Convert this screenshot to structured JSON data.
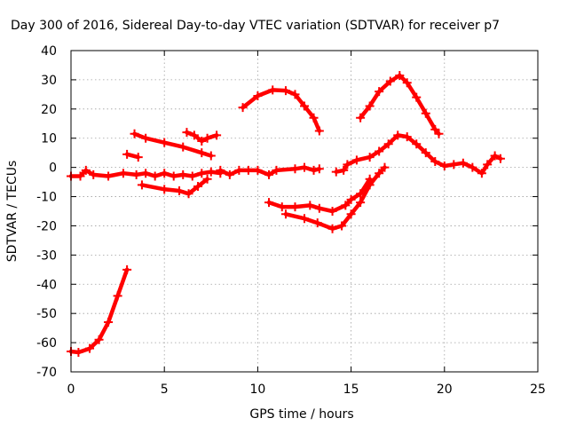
{
  "chart_data": {
    "type": "scatter",
    "title": "Day 300 of 2016, Sidereal Day-to-day VTEC variation (SDTVAR) for receiver p7",
    "xlabel": "GPS time / hours",
    "ylabel": "SDTVAR / TECUs",
    "xlim": [
      0,
      25
    ],
    "ylim": [
      -70,
      40
    ],
    "xticks": [
      "0",
      "5",
      "10",
      "15",
      "20",
      "25"
    ],
    "yticks": [
      "40",
      "30",
      "20",
      "10",
      "0",
      "-10",
      "-20",
      "-30",
      "-40",
      "-50",
      "-60",
      "-70"
    ],
    "grid": true,
    "marker": "+",
    "color": "#ff0000",
    "series": [
      {
        "name": "seg1",
        "points": [
          [
            0,
            -63
          ],
          [
            0.4,
            -63.3
          ],
          [
            1.0,
            -62
          ],
          [
            1.5,
            -59
          ],
          [
            2.0,
            -53
          ],
          [
            2.5,
            -44
          ],
          [
            3.0,
            -35
          ]
        ]
      },
      {
        "name": "seg2",
        "points": [
          [
            0,
            -3
          ],
          [
            0.5,
            -3
          ],
          [
            0.8,
            -1
          ],
          [
            1.2,
            -2.5
          ],
          [
            2,
            -3
          ],
          [
            2.8,
            -2
          ],
          [
            3.5,
            -2.5
          ],
          [
            4,
            -2
          ],
          [
            4.5,
            -3
          ],
          [
            5,
            -2
          ],
          [
            5.5,
            -3
          ],
          [
            6,
            -2.5
          ],
          [
            6.5,
            -3
          ],
          [
            7,
            -2
          ],
          [
            7.5,
            -1.5
          ],
          [
            8,
            -2
          ]
        ]
      },
      {
        "name": "seg3",
        "points": [
          [
            3.0,
            4.5
          ],
          [
            3.6,
            3.5
          ]
        ]
      },
      {
        "name": "seg4",
        "points": [
          [
            3.4,
            11.5
          ],
          [
            4.0,
            10
          ],
          [
            5,
            8.5
          ],
          [
            6,
            7
          ],
          [
            7,
            5
          ],
          [
            7.5,
            4
          ]
        ]
      },
      {
        "name": "seg5",
        "points": [
          [
            3.8,
            -6
          ],
          [
            5,
            -7.5
          ],
          [
            5.8,
            -8
          ],
          [
            6.3,
            -9
          ],
          [
            6.8,
            -6.5
          ],
          [
            7.3,
            -4
          ]
        ]
      },
      {
        "name": "seg6",
        "points": [
          [
            6.2,
            12
          ],
          [
            6.6,
            11
          ],
          [
            7.0,
            9
          ],
          [
            7.3,
            10
          ],
          [
            7.8,
            11
          ]
        ]
      },
      {
        "name": "seg7",
        "points": [
          [
            8,
            -1
          ],
          [
            8.5,
            -2.5
          ],
          [
            9,
            -1
          ],
          [
            9.5,
            -1
          ],
          [
            10,
            -1
          ],
          [
            10.6,
            -2.5
          ],
          [
            11,
            -1
          ],
          [
            12,
            -0.5
          ],
          [
            12.5,
            0
          ],
          [
            13,
            -1
          ],
          [
            13.3,
            -0.5
          ]
        ]
      },
      {
        "name": "seg8",
        "points": [
          [
            9.2,
            20.5
          ],
          [
            10,
            24.5
          ],
          [
            10.8,
            26.5
          ],
          [
            11.5,
            26.3
          ],
          [
            12,
            25
          ],
          [
            12.5,
            21
          ],
          [
            13,
            17
          ],
          [
            13.3,
            12.5
          ]
        ]
      },
      {
        "name": "seg9",
        "points": [
          [
            10.6,
            -12
          ],
          [
            11.3,
            -13.5
          ],
          [
            12,
            -13.5
          ],
          [
            12.8,
            -13
          ],
          [
            13.3,
            -14
          ],
          [
            14,
            -15
          ],
          [
            14.7,
            -13
          ],
          [
            15,
            -11
          ],
          [
            15.5,
            -9
          ],
          [
            16,
            -4
          ]
        ]
      },
      {
        "name": "seg10",
        "points": [
          [
            11.5,
            -16
          ],
          [
            12.5,
            -17.5
          ],
          [
            13.2,
            -19
          ],
          [
            14,
            -21
          ],
          [
            14.5,
            -20
          ],
          [
            15,
            -16
          ],
          [
            15.5,
            -12
          ],
          [
            16,
            -6
          ],
          [
            16.5,
            -2
          ],
          [
            16.8,
            0
          ]
        ]
      },
      {
        "name": "seg11",
        "points": [
          [
            14.2,
            -1.5
          ],
          [
            14.6,
            -1
          ],
          [
            14.8,
            1
          ],
          [
            15.3,
            2.5
          ],
          [
            16,
            3.5
          ],
          [
            16.5,
            5.5
          ],
          [
            17,
            8
          ],
          [
            17.5,
            11
          ],
          [
            18,
            10.5
          ],
          [
            18.5,
            8
          ],
          [
            19,
            5
          ],
          [
            19.5,
            2
          ],
          [
            20,
            0.5
          ],
          [
            20.5,
            1
          ],
          [
            21,
            1.5
          ],
          [
            21.5,
            0
          ],
          [
            22,
            -2
          ],
          [
            22.3,
            1
          ],
          [
            22.7,
            4
          ],
          [
            23,
            3
          ]
        ]
      },
      {
        "name": "seg12",
        "points": [
          [
            15.5,
            17
          ],
          [
            16,
            21
          ],
          [
            16.5,
            26
          ],
          [
            17.1,
            29.5
          ],
          [
            17.6,
            31.5
          ],
          [
            18,
            29
          ],
          [
            18.5,
            24
          ],
          [
            19,
            18.5
          ],
          [
            19.5,
            13
          ],
          [
            19.7,
            11.5
          ]
        ]
      }
    ]
  }
}
